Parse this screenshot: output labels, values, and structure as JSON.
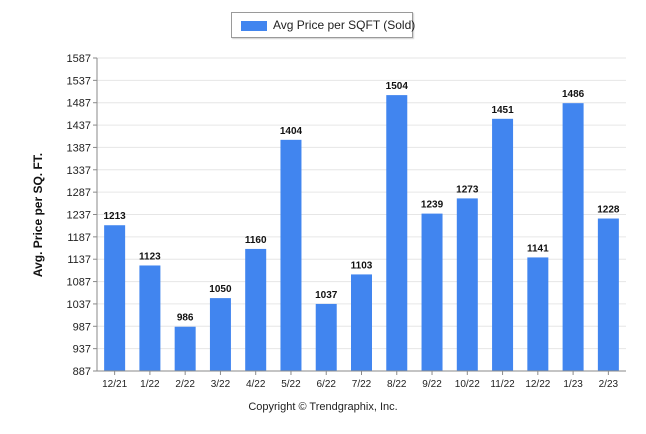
{
  "chart_data": {
    "type": "bar",
    "categories": [
      "12/21",
      "1/22",
      "2/22",
      "3/22",
      "4/22",
      "5/22",
      "6/22",
      "7/22",
      "8/22",
      "9/22",
      "10/22",
      "11/22",
      "12/22",
      "1/23",
      "2/23"
    ],
    "series": [
      {
        "name": "Avg Price per SQFT (Sold)",
        "values": [
          1213,
          1123,
          986,
          1050,
          1160,
          1404,
          1037,
          1103,
          1504,
          1239,
          1273,
          1451,
          1141,
          1486,
          1228
        ]
      }
    ],
    "title": "",
    "xlabel": "",
    "ylabel": "Avg. Price per SQ. FT.",
    "ylim": [
      887,
      1587
    ],
    "yticks": [
      887,
      937,
      987,
      1037,
      1087,
      1137,
      1187,
      1237,
      1287,
      1337,
      1387,
      1437,
      1487,
      1537,
      1587
    ],
    "grid": true,
    "legend_position": "top-center",
    "data_labels": true
  },
  "colors": {
    "bar": "#4185ef",
    "grid": "#e6e6e6",
    "axis": "#8a8a8a"
  },
  "footer": {
    "copyright": "Copyright © Trendgraphix, Inc."
  }
}
